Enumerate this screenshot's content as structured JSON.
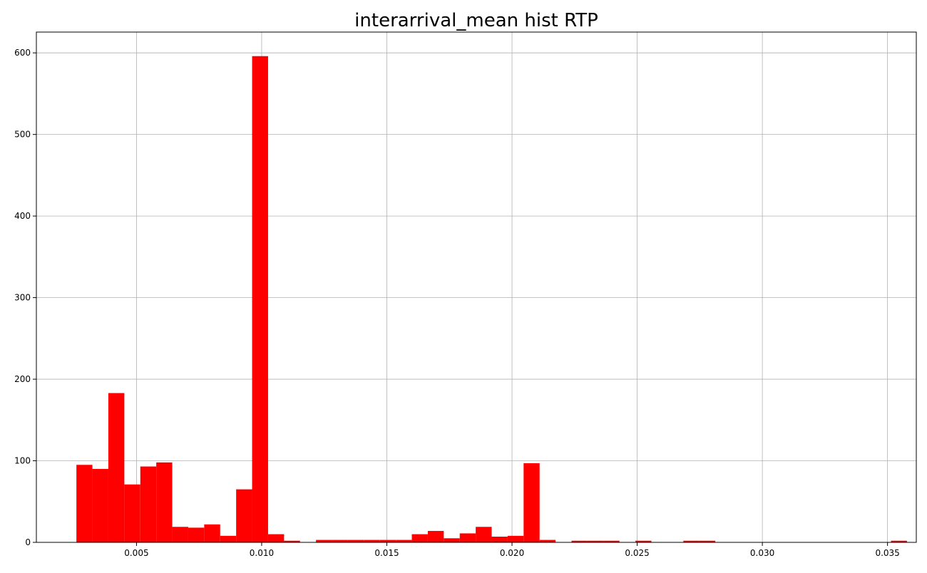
{
  "colors": {
    "bar": "#ff0000",
    "grid": "#b0b0b0",
    "axis": "#000000"
  },
  "chart_data": {
    "type": "bar",
    "title": "interarrival_mean hist RTP",
    "xlabel": "",
    "ylabel": "",
    "xlim": [
      0.001,
      0.03615
    ],
    "ylim": [
      0,
      625.5
    ],
    "grid": true,
    "xticks": [
      0.005,
      0.01,
      0.015,
      0.02,
      0.025,
      0.03,
      0.035
    ],
    "xtick_labels": [
      "0.005",
      "0.010",
      "0.015",
      "0.020",
      "0.025",
      "0.030",
      "0.035"
    ],
    "yticks": [
      0,
      100,
      200,
      300,
      400,
      500,
      600
    ],
    "ytick_labels": [
      "0",
      "100",
      "200",
      "300",
      "400",
      "500",
      "600"
    ],
    "bin_start": 0.0026,
    "bin_width": 0.000638,
    "counts": [
      95,
      90,
      183,
      71,
      93,
      98,
      19,
      18,
      22,
      8,
      65,
      596,
      10,
      2,
      0,
      3,
      3,
      3,
      3,
      3,
      3,
      10,
      14,
      5,
      11,
      19,
      7,
      8,
      97,
      3,
      0,
      2,
      2,
      2,
      0,
      2,
      0,
      0,
      2,
      2,
      0,
      0,
      0,
      0,
      0,
      0,
      0,
      0,
      0,
      0,
      0,
      2
    ]
  }
}
